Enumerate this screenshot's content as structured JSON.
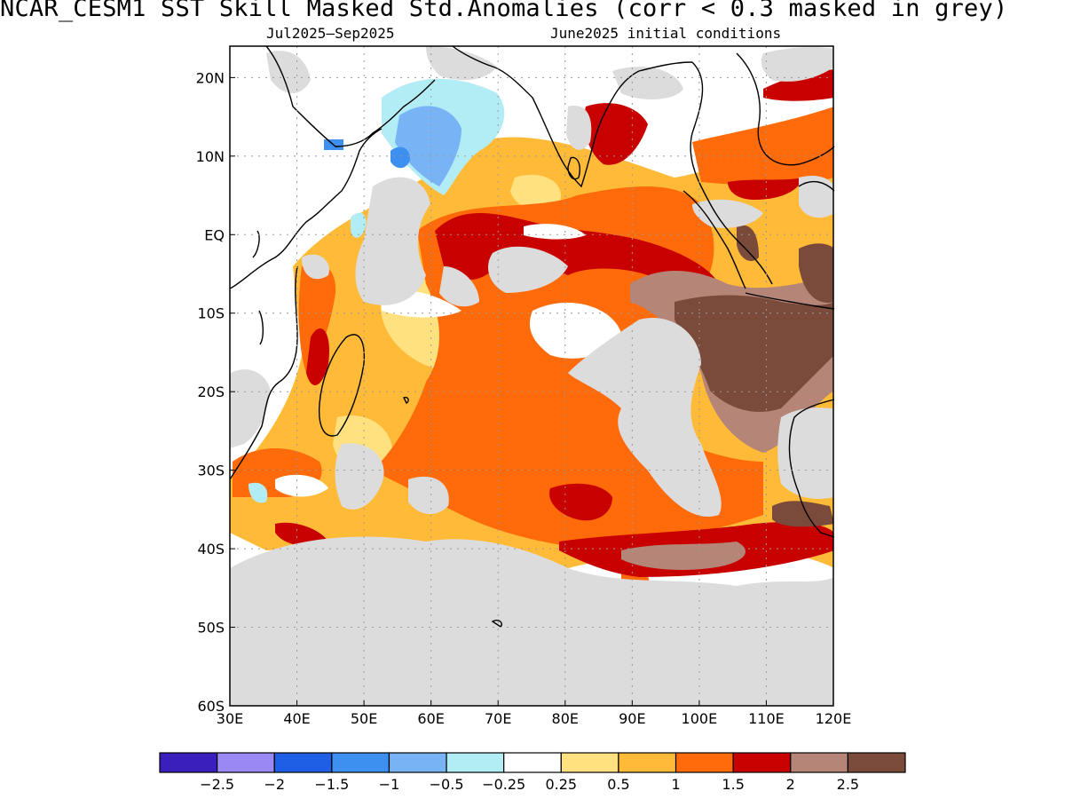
{
  "title": "NCAR_CESM1   SST Skill Masked Std.Anomalies (corr < 0.3 masked in grey)",
  "subtitle_left": "Jul2025–Sep2025",
  "subtitle_right": "June2025 initial conditions",
  "axes": {
    "x_ticks": [
      "30E",
      "40E",
      "50E",
      "60E",
      "70E",
      "80E",
      "90E",
      "100E",
      "110E",
      "120E"
    ],
    "y_ticks": [
      "20N",
      "10N",
      "EQ",
      "10S",
      "20S",
      "30S",
      "40S",
      "50S",
      "60S"
    ],
    "lon_range": [
      30,
      120
    ],
    "lat_range": [
      -60,
      24
    ]
  },
  "legend": {
    "labels": [
      "-2.5",
      "-2",
      "-1.5",
      "-1",
      "-0.5",
      "-0.25",
      "0.25",
      "0.5",
      "1",
      "1.5",
      "2",
      "2.5"
    ],
    "colors": [
      "#3a1fbd",
      "#9a88f5",
      "#1f5fe6",
      "#3d8ff0",
      "#78b4f5",
      "#b2ecf5",
      "#ffffff",
      "#ffe180",
      "#ffbb38",
      "#ff6a0a",
      "#c80000",
      "#b58577",
      "#7a4a3a"
    ],
    "mask_color": "#dcdcdc"
  },
  "chart_data": {
    "type": "heatmap",
    "title": "NCAR_CESM1   SST Skill Masked Std.Anomalies (corr < 0.3 masked in grey)",
    "x_range": [
      30,
      120
    ],
    "y_range": [
      -60,
      24
    ],
    "grid": true,
    "regions": [
      {
        "level": "0.5 to 1",
        "color": "#ffbb38",
        "lon": [
          30,
          120
        ],
        "lat": [
          -45,
          15
        ]
      },
      {
        "level": "1 to 1.5",
        "color": "#ff6a0a",
        "lon": [
          40,
          110
        ],
        "lat": [
          -40,
          10
        ]
      },
      {
        "level": "1.5 to 2",
        "color": "#c80000",
        "lon": [
          58,
          108
        ],
        "lat": [
          -8,
          14
        ]
      },
      {
        "level": "1.5 to 2",
        "color": "#c80000",
        "lon": [
          79,
          86
        ],
        "lat": [
          -37,
          -31
        ]
      },
      {
        "level": "2 to 2.5",
        "color": "#b58577",
        "lon": [
          95,
          120
        ],
        "lat": [
          -30,
          -3
        ]
      },
      {
        "level": "> 2.5",
        "color": "#7a4a3a",
        "lon": [
          100,
          118
        ],
        "lat": [
          -27,
          -8
        ]
      },
      {
        "level": "-1 to -0.5",
        "color": "#78b4f5",
        "lon": [
          54,
          66
        ],
        "lat": [
          5,
          15
        ]
      },
      {
        "level": "-0.5 to -0.25",
        "color": "#b2ecf5",
        "lon": [
          50,
          72
        ],
        "lat": [
          4,
          22
        ]
      },
      {
        "level": "masked (corr < 0.3)",
        "color": "#dcdcdc",
        "lon": [
          30,
          120
        ],
        "lat": [
          -60,
          -41
        ]
      }
    ]
  }
}
